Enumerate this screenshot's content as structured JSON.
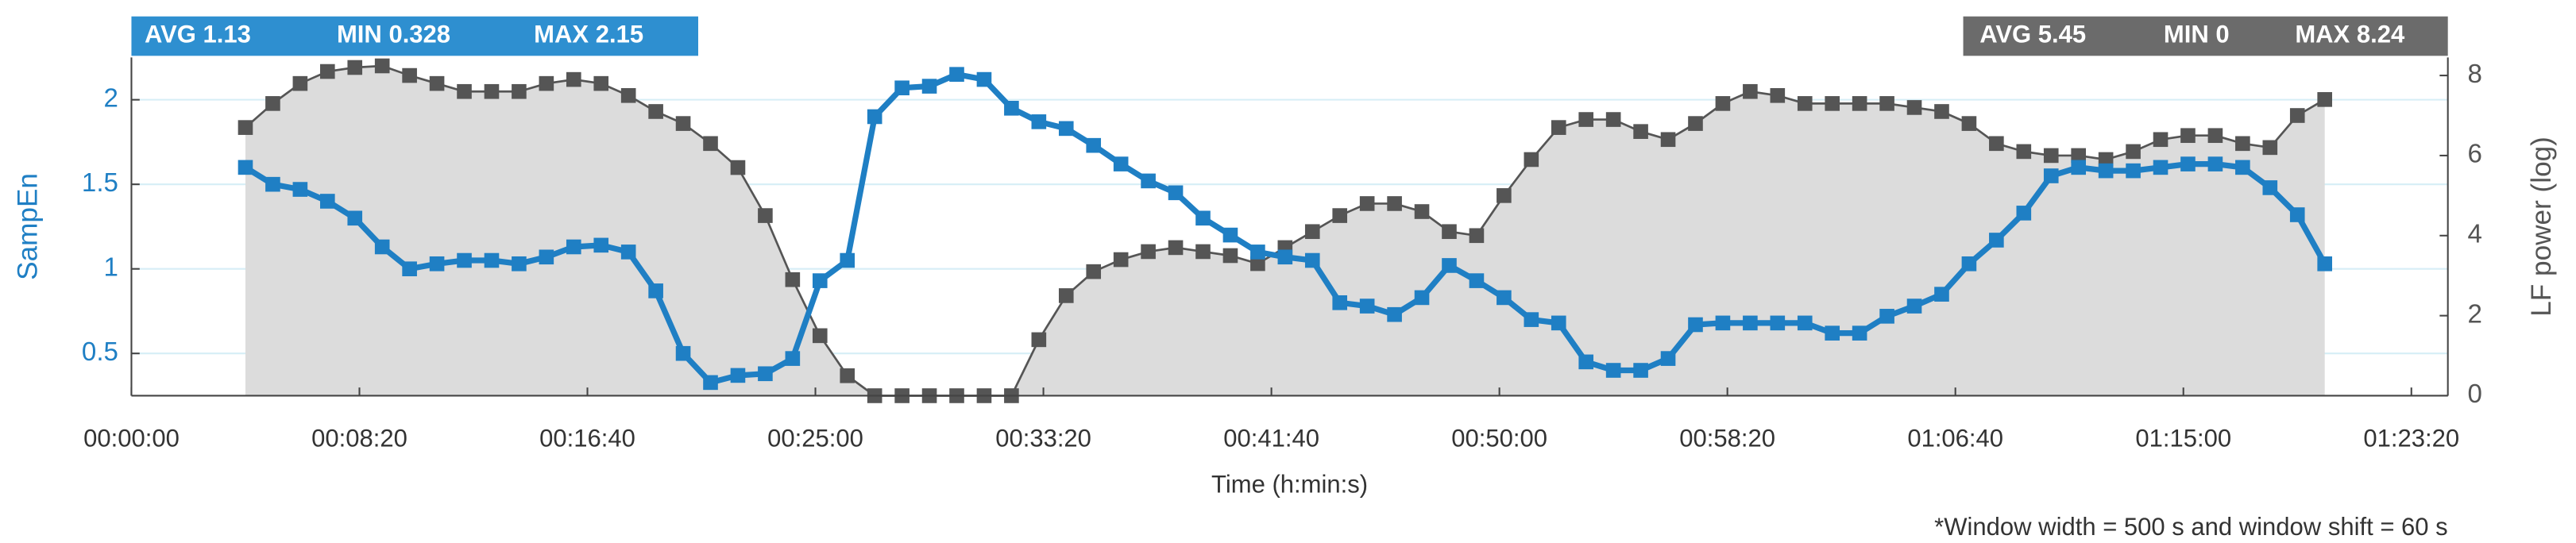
{
  "chart_data": {
    "type": "line",
    "x_label": "Time (h:min:s)",
    "y_label": "SampEn",
    "y2_label": "LF power (log)",
    "stats_left": [
      "AVG 1.13",
      "MIN 0.328",
      "MAX 2.15"
    ],
    "stats_right": [
      "AVG 5.45",
      "MIN 0",
      "MAX 8.24"
    ],
    "note": "*Window width = 500 s and window shift = 60 s",
    "xlim": [
      0,
      5080
    ],
    "xticks": [
      {
        "value": 0,
        "label": "00:00:00"
      },
      {
        "value": 500,
        "label": "00:08:20"
      },
      {
        "value": 1000,
        "label": "00:16:40"
      },
      {
        "value": 1500,
        "label": "00:25:00"
      },
      {
        "value": 2000,
        "label": "00:33:20"
      },
      {
        "value": 2500,
        "label": "00:41:40"
      },
      {
        "value": 3000,
        "label": "00:50:00"
      },
      {
        "value": 3500,
        "label": "00:58:20"
      },
      {
        "value": 4000,
        "label": "01:06:40"
      },
      {
        "value": 4500,
        "label": "01:15:00"
      },
      {
        "value": 5000,
        "label": "01:23:20"
      }
    ],
    "ylim": [
      0.25,
      2.25
    ],
    "yticks": [
      0.5,
      1,
      1.5,
      2
    ],
    "y2lim": [
      0,
      8.45
    ],
    "y2ticks": [
      0,
      2,
      4,
      6,
      8
    ],
    "grid": true,
    "x": [
      250,
      310,
      370,
      430,
      490,
      550,
      610,
      670,
      730,
      790,
      850,
      910,
      970,
      1030,
      1090,
      1150,
      1210,
      1270,
      1330,
      1390,
      1450,
      1510,
      1570,
      1630,
      1690,
      1750,
      1810,
      1870,
      1930,
      1990,
      2050,
      2110,
      2170,
      2230,
      2290,
      2350,
      2410,
      2470,
      2530,
      2590,
      2650,
      2710,
      2770,
      2830,
      2890,
      2950,
      3010,
      3070,
      3130,
      3190,
      3250,
      3310,
      3370,
      3430,
      3490,
      3550,
      3610,
      3670,
      3730,
      3790,
      3850,
      3910,
      3970,
      4030,
      4090,
      4150,
      4210,
      4270,
      4330,
      4390,
      4450,
      4510,
      4570,
      4630,
      4690,
      4750,
      4810
    ],
    "series": [
      {
        "color": "#555555",
        "fill": "#dcdcdc",
        "axis": "y2",
        "values": [
          6.7,
          7.3,
          7.8,
          8.1,
          8.2,
          8.24,
          8.0,
          7.8,
          7.6,
          7.6,
          7.6,
          7.8,
          7.9,
          7.8,
          7.5,
          7.1,
          6.8,
          6.3,
          5.7,
          4.5,
          2.9,
          1.5,
          0.5,
          0,
          0,
          0,
          0,
          0,
          0,
          1.4,
          2.5,
          3.1,
          3.4,
          3.6,
          3.7,
          3.6,
          3.5,
          3.3,
          3.7,
          4.1,
          4.5,
          4.8,
          4.8,
          4.6,
          4.1,
          4.0,
          5.0,
          5.9,
          6.7,
          6.9,
          6.9,
          6.6,
          6.4,
          6.8,
          7.3,
          7.6,
          7.5,
          7.3,
          7.3,
          7.3,
          7.3,
          7.2,
          7.1,
          6.8,
          6.3,
          6.1,
          6.0,
          6.0,
          5.9,
          6.1,
          6.4,
          6.5,
          6.5,
          6.3,
          6.2,
          7.0,
          7.4
        ]
      },
      {
        "color": "#1f7fc4",
        "values": [
          1.6,
          1.5,
          1.47,
          1.4,
          1.3,
          1.13,
          1.0,
          1.03,
          1.05,
          1.05,
          1.03,
          1.07,
          1.13,
          1.14,
          1.1,
          0.87,
          0.5,
          0.328,
          0.37,
          0.38,
          0.47,
          0.93,
          1.05,
          1.9,
          2.07,
          2.08,
          2.15,
          2.12,
          1.95,
          1.87,
          1.83,
          1.73,
          1.62,
          1.52,
          1.45,
          1.3,
          1.2,
          1.1,
          1.07,
          1.05,
          0.8,
          0.78,
          0.73,
          0.83,
          1.02,
          0.93,
          0.83,
          0.7,
          0.68,
          0.45,
          0.4,
          0.4,
          0.47,
          0.67,
          0.68,
          0.68,
          0.68,
          0.68,
          0.62,
          0.62,
          0.72,
          0.78,
          0.85,
          1.03,
          1.17,
          1.33,
          1.55,
          1.6,
          1.58,
          1.58,
          1.6,
          1.62,
          1.62,
          1.6,
          1.48,
          1.32,
          1.03
        ]
      }
    ]
  }
}
